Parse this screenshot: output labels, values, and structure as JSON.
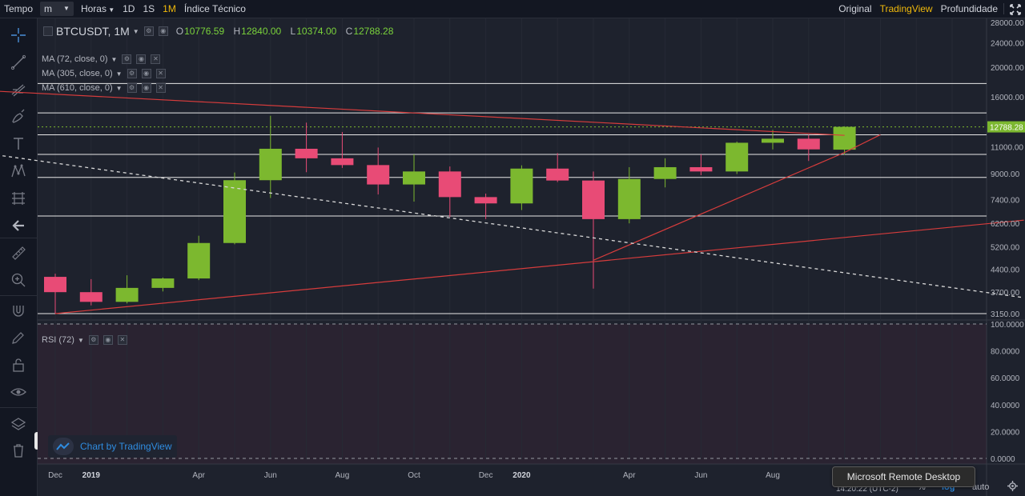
{
  "topbar": {
    "tempo_label": "Tempo",
    "interval_value": "m",
    "hours_value": "Horas",
    "intervals": [
      "1D",
      "1S",
      "1M"
    ],
    "active_interval": "1M",
    "indicator_label": "Índice Técnico",
    "views": [
      "Original",
      "TradingView",
      "Profundidade"
    ],
    "active_view": "TradingView"
  },
  "legend": {
    "symbol": "BTCUSDT, 1M",
    "ohlc": {
      "o_label": "O",
      "o": "10776.59",
      "h_label": "H",
      "h": "12840.00",
      "l_label": "L",
      "l": "10374.00",
      "c_label": "C",
      "c": "12788.28"
    },
    "indicators": [
      "MA (72, close, 0)",
      "MA (305, close, 0)",
      "MA (610, close, 0)"
    ],
    "rsi": "RSI (72)"
  },
  "watermark": {
    "text": "Chart by TradingView"
  },
  "tooltip": {
    "text": "Microsoft Remote Desktop"
  },
  "bottom": {
    "time": "14:20:22 (UTC-2)",
    "percent": "%",
    "log": "log",
    "auto": "auto"
  },
  "colors": {
    "up": "#7cb82f",
    "down": "#e84b76",
    "accent": "#f0b90b",
    "trend": "#d63c3c",
    "background": "#1e222d",
    "rsi_background": "#2a2331",
    "price_label_bg": "#7cb82f",
    "blue": "#2f8ce0"
  },
  "chart_data": {
    "type": "candlestick",
    "symbol": "BTCUSDT",
    "interval": "1M",
    "scale": "log",
    "x_tick_labels": [
      "Dec",
      "2019",
      "Apr",
      "Jun",
      "Aug",
      "Oct",
      "Dec",
      "2020",
      "Apr",
      "Jun",
      "Aug"
    ],
    "price_ticks": [
      "28000.00",
      "24000.00",
      "20000.00",
      "16000.00",
      "12788.28",
      "11000.00",
      "9000.00",
      "7400.00",
      "6200.00",
      "5200.00",
      "4400.00",
      "3700.00",
      "3150.00"
    ],
    "last_price": "12788.28",
    "candles": [
      {
        "month": "2018-12",
        "open": 4150,
        "high": 4250,
        "low": 3150,
        "close": 3700
      },
      {
        "month": "2019-01",
        "open": 3700,
        "high": 4080,
        "low": 3350,
        "close": 3440
      },
      {
        "month": "2019-02",
        "open": 3440,
        "high": 4200,
        "low": 3400,
        "close": 3820
      },
      {
        "month": "2019-03",
        "open": 3820,
        "high": 4130,
        "low": 3720,
        "close": 4100
      },
      {
        "month": "2019-04",
        "open": 4100,
        "high": 5650,
        "low": 4050,
        "close": 5350
      },
      {
        "month": "2019-05",
        "open": 5350,
        "high": 9080,
        "low": 5300,
        "close": 8570
      },
      {
        "month": "2019-06",
        "open": 8570,
        "high": 13900,
        "low": 7500,
        "close": 10850
      },
      {
        "month": "2019-07",
        "open": 10850,
        "high": 13200,
        "low": 9100,
        "close": 10100
      },
      {
        "month": "2019-08",
        "open": 10100,
        "high": 12300,
        "low": 9400,
        "close": 9600
      },
      {
        "month": "2019-09",
        "open": 9600,
        "high": 10950,
        "low": 7700,
        "close": 8300
      },
      {
        "month": "2019-10",
        "open": 8300,
        "high": 10400,
        "low": 7300,
        "close": 9150
      },
      {
        "month": "2019-11",
        "open": 9150,
        "high": 9500,
        "low": 6500,
        "close": 7550
      },
      {
        "month": "2019-12",
        "open": 7550,
        "high": 7750,
        "low": 6400,
        "close": 7200
      },
      {
        "month": "2020-01",
        "open": 7200,
        "high": 9580,
        "low": 6850,
        "close": 9350
      },
      {
        "month": "2020-02",
        "open": 9350,
        "high": 10500,
        "low": 8450,
        "close": 8550
      },
      {
        "month": "2020-03",
        "open": 8550,
        "high": 9150,
        "low": 3800,
        "close": 6400
      },
      {
        "month": "2020-04",
        "open": 6400,
        "high": 9450,
        "low": 6200,
        "close": 8650
      },
      {
        "month": "2020-05",
        "open": 8650,
        "high": 10100,
        "low": 8120,
        "close": 9450
      },
      {
        "month": "2020-06",
        "open": 9450,
        "high": 10400,
        "low": 8900,
        "close": 9150
      },
      {
        "month": "2020-07",
        "open": 9150,
        "high": 11450,
        "low": 8980,
        "close": 11350
      },
      {
        "month": "2020-08",
        "open": 11350,
        "high": 12500,
        "low": 10800,
        "close": 11700
      },
      {
        "month": "2020-09",
        "open": 11700,
        "high": 12050,
        "low": 9900,
        "close": 10800
      },
      {
        "month": "2020-10",
        "open": 10776.59,
        "high": 12840,
        "low": 10374,
        "close": 12788.28
      }
    ],
    "horizontal_levels": [
      17700,
      14200,
      12050,
      10400,
      8750,
      6550,
      3150
    ],
    "dashed_level": 12788.28,
    "trend_lines": [
      {
        "style": "solid",
        "color": "red",
        "from": {
          "month": "2018-10",
          "price": 16800
        },
        "to": {
          "month": "2020-10",
          "price": 12000
        }
      },
      {
        "style": "solid",
        "color": "red",
        "from": {
          "month": "2018-12",
          "price": 3150
        },
        "to": {
          "month": "2021-03",
          "price": 6350
        }
      },
      {
        "style": "solid",
        "color": "red",
        "from": {
          "month": "2020-03",
          "price": 4700
        },
        "to": {
          "month": "2020-10",
          "price": 10550
        }
      },
      {
        "style": "solid",
        "color": "red",
        "from": {
          "month": "2020-10",
          "price": 10550
        },
        "to": {
          "month": "2020-11",
          "price": 12050
        }
      },
      {
        "style": "dashed",
        "color": "white",
        "from": {
          "month": "2018-10",
          "price": 10500
        },
        "to": {
          "month": "2021-03",
          "price": 3550
        }
      }
    ],
    "rsi_panel": {
      "title": "RSI (72)",
      "tick_labels": [
        "100.0000",
        "80.0000",
        "60.0000",
        "40.0000",
        "20.0000",
        "0.0000"
      ],
      "range": [
        0,
        100
      ],
      "band_levels": [
        100,
        0
      ]
    }
  }
}
